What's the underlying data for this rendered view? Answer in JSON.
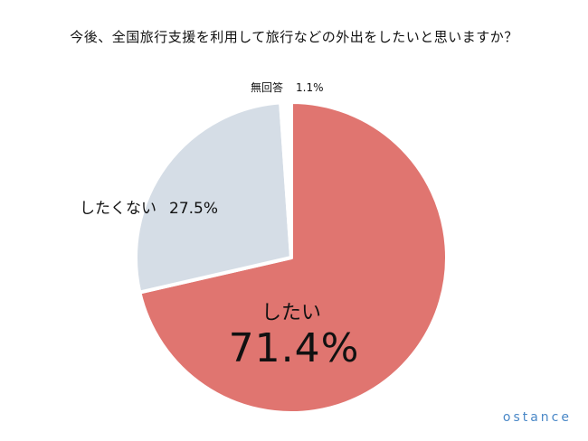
{
  "chart_data": {
    "type": "pie",
    "title": "今後、全国旅行支援を利用して旅行などの外出をしたいと思いますか？",
    "slices": [
      {
        "label": "したい",
        "value": 71.4,
        "display": "71.4%",
        "color": "#e07570"
      },
      {
        "label": "したくない",
        "value": 27.5,
        "display": "27.5%",
        "color": "#d5dde6"
      },
      {
        "label": "無回答",
        "value": 1.1,
        "display": "1.1%",
        "color": "#ffffff"
      }
    ],
    "start": "12 o'clock",
    "direction": "clockwise"
  },
  "brand": "ostance"
}
